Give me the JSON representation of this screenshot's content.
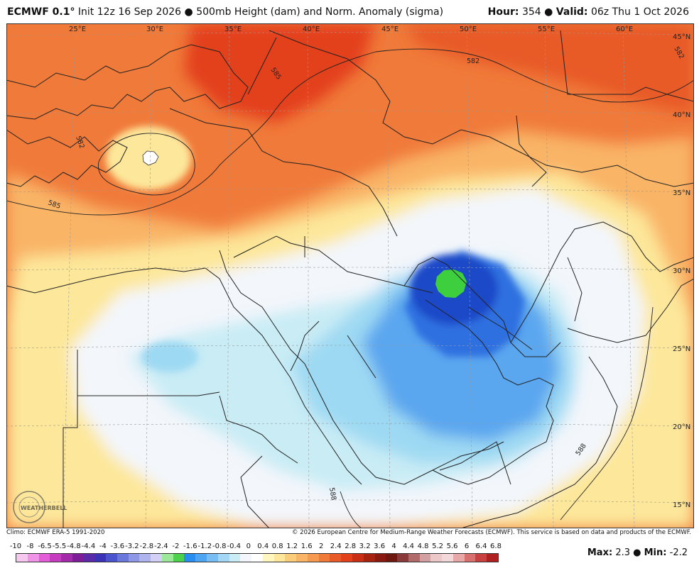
{
  "header": {
    "model": "ECMWF 0.1°",
    "init": "Init 12z 16 Sep 2026",
    "bullet": "●",
    "product": "500mb Height (dam) and Norm. Anomaly (sigma)",
    "hour_label": "Hour:",
    "hour_value": "354",
    "valid_label": "Valid:",
    "valid_value": "06z Thu 1 Oct 2026"
  },
  "map": {
    "region": "Middle East / Arabian Peninsula",
    "lon_labels": [
      "25°E",
      "30°E",
      "35°E",
      "40°E",
      "45°E",
      "50°E",
      "55°E",
      "60°E"
    ],
    "lat_labels": [
      "45°N",
      "40°N",
      "35°N",
      "30°N",
      "25°N",
      "20°N",
      "15°N"
    ],
    "contour_labels": [
      "585",
      "582",
      "582",
      "585",
      "582",
      "588",
      "588"
    ],
    "logo_text": "WEATHERBELL",
    "colors": {
      "warm_deep": "#e3411b",
      "warm_mid": "#f07a3a",
      "warm_light": "#f9b466",
      "warm_pale": "#fde79a",
      "neutral": "#f3f6fb",
      "cool_pale": "#c9ecf5",
      "cool_light": "#9ed9f3",
      "cool_mid": "#5aa6ef",
      "cool_deep": "#2f6fe0",
      "cool_core": "#1c48c8",
      "green_core": "#3ecf3e"
    }
  },
  "footer": {
    "climo": "Climo: ECMWF ERA-5 1991-2020",
    "copyright": "© 2026 European Centre for Medium-Range Weather Forecasts (ECMWF). This service is based on data and products of the ECMWF."
  },
  "colorbar": {
    "labels": [
      "-10",
      "-8",
      "-6.5",
      "-5.5",
      "-4.8",
      "-4.4",
      "-4",
      "-3.6",
      "-3.2",
      "-2.8",
      "-2.4",
      "-2",
      "-1.6",
      "-1.2",
      "-0.8",
      "-0.4",
      "0",
      "0.4",
      "0.8",
      "1.2",
      "1.6",
      "2",
      "2.4",
      "2.8",
      "3.2",
      "3.6",
      "4",
      "4.4",
      "4.8",
      "5.2",
      "5.6",
      "6",
      "6.4",
      "6.8"
    ],
    "colors": [
      "#f6c8f0",
      "#ef94e6",
      "#e45dd8",
      "#c53cc0",
      "#a32aa8",
      "#7d1e98",
      "#5a2aa8",
      "#3a33b8",
      "#4a54cc",
      "#6a78dc",
      "#8e98e6",
      "#b0b4ee",
      "#d2d0f4",
      "#9be89b",
      "#4ed24e",
      "#2a8ef0",
      "#4ea6f2",
      "#78bef4",
      "#a4d6f6",
      "#c9ecf5",
      "#f3f6fb",
      "#ffffff",
      "#fff6c0",
      "#fde79a",
      "#fbcd7a",
      "#f9b466",
      "#f59a4e",
      "#f07a3a",
      "#e85a28",
      "#e3411b",
      "#c92f14",
      "#a82210",
      "#8a1a10",
      "#6e1810",
      "#8a3a3a",
      "#b06a6a",
      "#d2a0a0",
      "#ecc8c8",
      "#f2d8d8",
      "#e8a8a8",
      "#d87070",
      "#c84040",
      "#b02020"
    ],
    "max_label": "Max:",
    "max_value": "2.3",
    "min_label": "Min:",
    "min_value": "-2.2"
  }
}
